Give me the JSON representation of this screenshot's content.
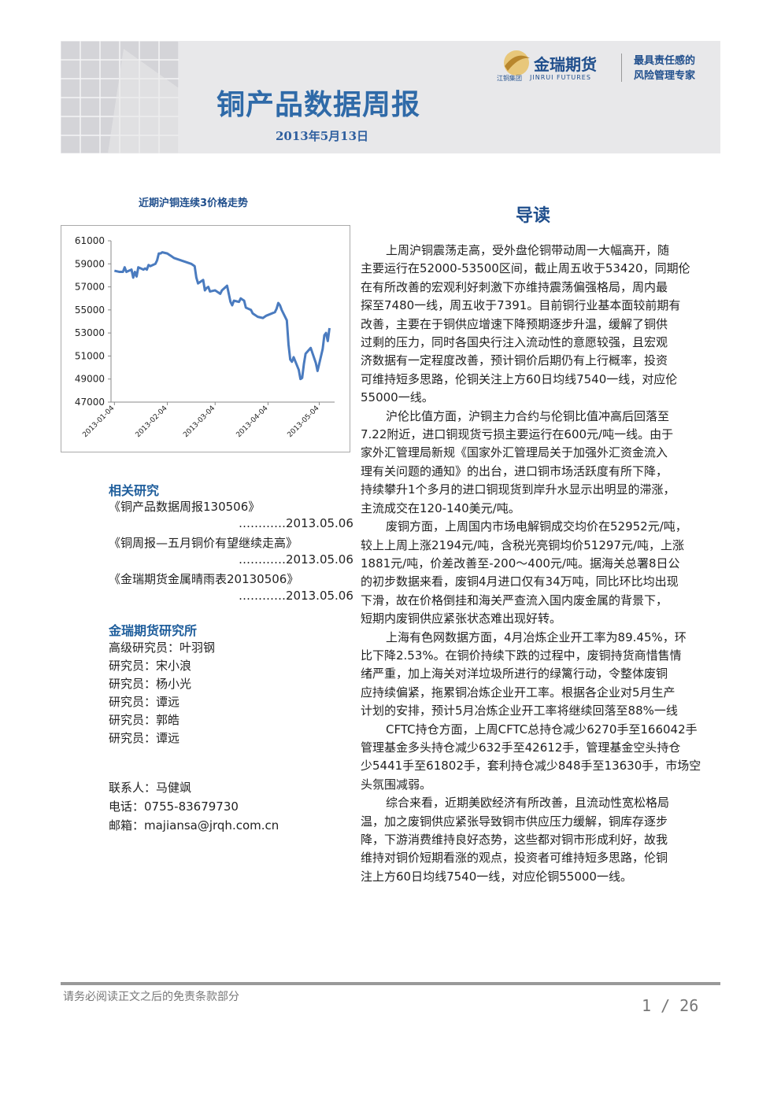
{
  "header": {
    "title": "铜产品数据周报",
    "date": "2013年5月13日",
    "logo_name": "金瑞期货",
    "logo_group": "江铜集团",
    "logo_english": "JINRUI FUTURES",
    "slogan": [
      "最具责任感的",
      "风险管理专家"
    ]
  },
  "chart_data": {
    "type": "line",
    "title": "近期沪铜连续3价格走势",
    "color": "#4a7bbf",
    "x": [
      "2013-01-04",
      "2013-01-07",
      "2013-01-09",
      "2013-01-10",
      "2013-01-11",
      "2013-01-14",
      "2013-01-15",
      "2013-01-16",
      "2013-01-17",
      "2013-01-18",
      "2013-01-21",
      "2013-01-22",
      "2013-01-23",
      "2013-01-24",
      "2013-01-25",
      "2013-01-28",
      "2013-01-29",
      "2013-01-30",
      "2013-01-31",
      "2013-02-01",
      "2013-02-04",
      "2013-02-05",
      "2013-02-06",
      "2013-02-07",
      "2013-02-08",
      "2013-02-18",
      "2013-02-19",
      "2013-02-20",
      "2013-02-21",
      "2013-02-22",
      "2013-02-25",
      "2013-02-26",
      "2013-02-27",
      "2013-02-28",
      "2013-03-01",
      "2013-03-04",
      "2013-03-05",
      "2013-03-06",
      "2013-03-07",
      "2013-03-08",
      "2013-03-11",
      "2013-03-12",
      "2013-03-13",
      "2013-03-14",
      "2013-03-15",
      "2013-03-18",
      "2013-03-19",
      "2013-03-20",
      "2013-03-21",
      "2013-03-22",
      "2013-03-25",
      "2013-03-26",
      "2013-03-27",
      "2013-03-28",
      "2013-03-29",
      "2013-04-01",
      "2013-04-02",
      "2013-04-03",
      "2013-04-08",
      "2013-04-09",
      "2013-04-10",
      "2013-04-11",
      "2013-04-12",
      "2013-04-15",
      "2013-04-16",
      "2013-04-17",
      "2013-04-18",
      "2013-04-19",
      "2013-04-22",
      "2013-04-23",
      "2013-04-24",
      "2013-04-25",
      "2013-04-26",
      "2013-04-29",
      "2013-05-02",
      "2013-05-03",
      "2013-05-06",
      "2013-05-07",
      "2013-05-08",
      "2013-05-09",
      "2013-05-10"
    ],
    "values": [
      58400,
      58300,
      58300,
      58700,
      58300,
      58500,
      57800,
      58300,
      57900,
      58700,
      58500,
      58600,
      58500,
      58900,
      58800,
      59000,
      59300,
      59900,
      59900,
      60000,
      59900,
      59800,
      59700,
      59600,
      59500,
      59000,
      58900,
      58800,
      57800,
      57300,
      57600,
      56700,
      56900,
      57000,
      56600,
      56700,
      56600,
      56500,
      56400,
      56700,
      57100,
      56400,
      55700,
      55400,
      55800,
      55700,
      56000,
      55900,
      55800,
      55200,
      55000,
      54700,
      54600,
      54500,
      54400,
      54300,
      54400,
      54500,
      54800,
      55100,
      55600,
      55400,
      55000,
      54100,
      52000,
      50700,
      50500,
      50900,
      49800,
      49000,
      49100,
      50300,
      51200,
      51700,
      50400,
      49700,
      51600,
      52800,
      53000,
      52300,
      53420
    ],
    "xlim": [
      "2013-01-02",
      "2013-05-13"
    ],
    "xticks": [
      "2013-01-04",
      "2013-02-04",
      "2013-03-04",
      "2013-04-04",
      "2013-05-04"
    ],
    "ylim": [
      47000,
      61000
    ],
    "yticks": [
      47000,
      49000,
      51000,
      53000,
      55000,
      57000,
      59000,
      61000
    ],
    "grid": false
  },
  "related": {
    "title": "相关研究",
    "items": [
      {
        "name": "《铜产品数据周报130506》",
        "date": "…………2013.05.06"
      },
      {
        "name": "《铜周报—五月铜价有望继续走高》",
        "date": "…………2013.05.06"
      },
      {
        "name": "《金瑞期货金属晴雨表20130506》",
        "date": "…………2013.05.06"
      }
    ]
  },
  "institute": {
    "title": "金瑞期货研究所",
    "members": [
      "高级研究员：叶羽钢",
      "研究员：宋小浪",
      "研究员：杨小光",
      "研究员：谭远",
      "研究员：郭皓",
      "研究员：谭远"
    ]
  },
  "contact": [
    "联系人：马健飒",
    "电话：0755-83679730",
    "邮箱：majiansa@jrqh.com.cn"
  ],
  "body": {
    "title": "导读",
    "paragraphs": [
      {
        "lines": [
          "上周沪铜震荡走高，受外盘伦铜带动周一大幅高开，随",
          "主要运行在52000-53500区间，截止周五收于53420，同期伦",
          "在有所改善的宏观利好刺激下亦维持震荡偏强格局，周内最",
          "探至7480一线，周五收于7391。目前铜行业基本面较前期有",
          "改善，主要在于铜供应增速下降预期逐步升温，缓解了铜供",
          "过剩的压力，同时各国央行注入流动性的意愿较强，且宏观",
          "济数据有一定程度改善，预计铜价后期仍有上行概率，投资",
          "可维持短多思路，伦铜关注上方60日均线7540一线，对应伦",
          "55000一线。"
        ]
      },
      {
        "lines": [
          "沪伦比值方面，沪铜主力合约与伦铜比值冲高后回落至",
          "7.22附近，进口铜现货亏损主要运行在600元/吨一线。由于",
          "家外汇管理局新规《国家外汇管理局关于加强外汇资金流入",
          "理有关问题的通知》的出台，进口铜市场活跃度有所下降，",
          "持续攀升1个多月的进口铜现货到岸升水显示出明显的滞涨，",
          "主流成交在120-140美元/吨。"
        ]
      },
      {
        "lines": [
          "废铜方面，上周国内市场电解铜成交均价在52952元/吨，",
          "较上上周上涨2194元/吨，含税光亮铜均价51297元/吨，上涨",
          "1881元/吨，价差改善至-200～400元/吨。据海关总署8日公",
          "的初步数据来看，废铜4月进口仅有34万吨，同比环比均出现",
          "下滑，故在价格倒挂和海关严查流入国内废金属的背景下，",
          "短期内废铜供应紧张状态难出现好转。"
        ]
      },
      {
        "lines": [
          "上海有色网数据方面，4月冶炼企业开工率为89.45%，环",
          "比下降2.53%。在铜价持续下跌的过程中，废铜持货商惜售情",
          "绪严重，加上海关对洋垃圾所进行的绿篱行动，令整体废铜",
          "应持续偏紧，拖累铜冶炼企业开工率。根据各企业对5月生产",
          "计划的安排，预计5月冶炼企业开工率将继续回落至88%一线"
        ]
      },
      {
        "lines": [
          "CFTC持仓方面，上周CFTC总持仓减少6270手至166042手",
          "管理基金多头持仓减少632手至42612手，管理基金空头持仓",
          "少5441手至61802手，套利持仓减少848手至13630手，市场空",
          "头氛围减弱。"
        ]
      },
      {
        "lines": [
          "综合来看，近期美欧经济有所改善，且流动性宽松格局",
          "温，加之废铜供应紧张导致铜市供应压力缓解，铜库存逐步",
          "降，下游消费维持良好态势，这些都对铜市形成利好，故我",
          "维持对铜价短期看涨的观点，投资者可维持短多思路，伦铜",
          "注上方60日均线7540一线，对应伦铜55000一线。"
        ]
      }
    ]
  },
  "footer": {
    "note": "请务必阅读正文之后的免责条款部分",
    "page": "1 / 26"
  }
}
